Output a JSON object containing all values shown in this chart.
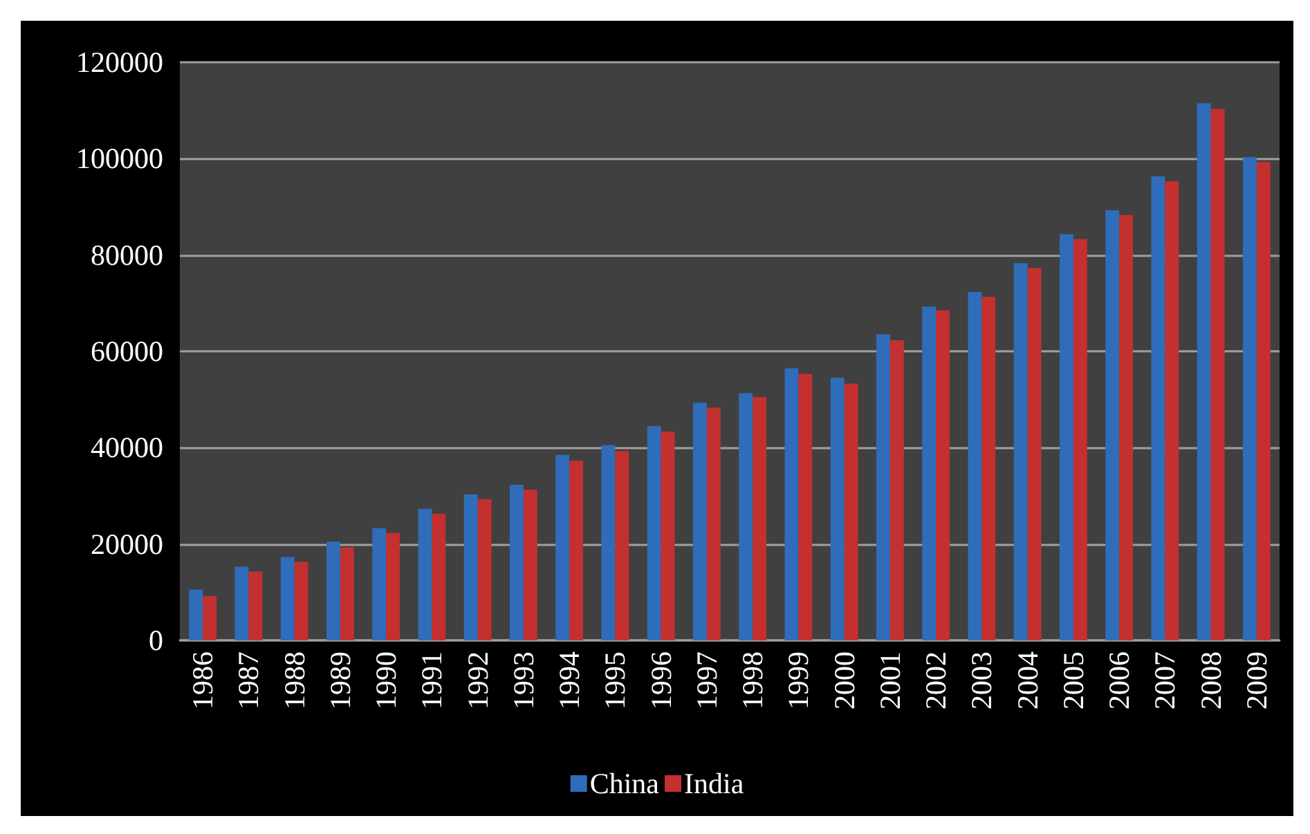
{
  "chart_data": {
    "type": "bar",
    "categories": [
      "1986",
      "1987",
      "1988",
      "1989",
      "1990",
      "1991",
      "1992",
      "1993",
      "1994",
      "1995",
      "1996",
      "1997",
      "1998",
      "1999",
      "2000",
      "2001",
      "2002",
      "2003",
      "2004",
      "2005",
      "2006",
      "2007",
      "2008",
      "2009"
    ],
    "series": [
      {
        "name": "China",
        "color": "#2f6dba",
        "values": [
          10500,
          15300,
          17300,
          20500,
          23300,
          27300,
          30300,
          32300,
          38500,
          40500,
          44500,
          49300,
          51300,
          56500,
          54500,
          63500,
          69300,
          72300,
          78300,
          84300,
          89300,
          96300,
          111500,
          100300
        ]
      },
      {
        "name": "India",
        "color": "#c4302f",
        "values": [
          9200,
          14300,
          16300,
          19300,
          22300,
          26300,
          29300,
          31300,
          37300,
          39300,
          43300,
          48300,
          50500,
          55300,
          53300,
          62300,
          68500,
          71300,
          77300,
          83300,
          88300,
          95300,
          110300,
          99300
        ]
      }
    ],
    "ylim": [
      0,
      120000
    ],
    "yticks": [
      0,
      20000,
      40000,
      60000,
      80000,
      100000,
      120000
    ],
    "grid": "y",
    "legend": "bottom"
  }
}
